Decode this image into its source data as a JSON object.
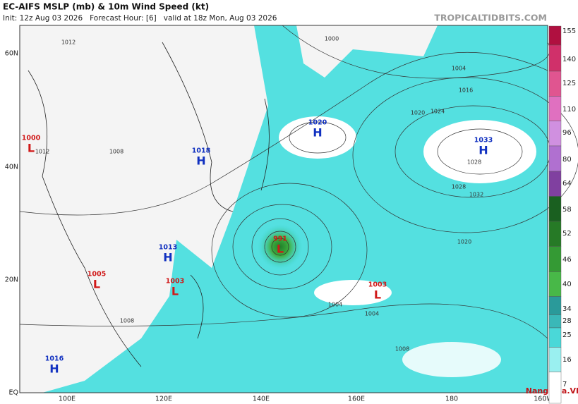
{
  "header": {
    "title": "EC-AIFS MSLP (mb) & 10m Wind Speed (kt)",
    "subtitle": "Init: 12z Aug 03 2026   Forecast Hour: [6]   valid at 18z Mon, Aug 03 2026",
    "site": "TROPICALTIDBITS.COM"
  },
  "latitude_labels": [
    "60N",
    "40N",
    "20N",
    "EQ"
  ],
  "longitude_labels": [
    "100E",
    "120E",
    "140E",
    "160E",
    "180",
    "160W"
  ],
  "colorbar": {
    "ticks": [
      "155",
      "140",
      "125",
      "110",
      "96",
      "80",
      "64",
      "58",
      "52",
      "46",
      "40",
      "34",
      "28",
      "25",
      "16",
      "7"
    ]
  },
  "pressure_centers": [
    {
      "symbol": "L",
      "value": "1000",
      "kind": "low"
    },
    {
      "symbol": "H",
      "value": "1018",
      "kind": "high"
    },
    {
      "symbol": "H",
      "value": "1013",
      "kind": "high"
    },
    {
      "symbol": "L",
      "value": "1005",
      "kind": "low"
    },
    {
      "symbol": "L",
      "value": "1003",
      "kind": "low"
    },
    {
      "symbol": "L",
      "value": "991",
      "kind": "low"
    },
    {
      "symbol": "L",
      "value": "1003",
      "kind": "low"
    },
    {
      "symbol": "H",
      "value": "1020",
      "kind": "high"
    },
    {
      "symbol": "H",
      "value": "1033",
      "kind": "high"
    },
    {
      "symbol": "H",
      "value": "1016",
      "kind": "high"
    }
  ],
  "isobar_labels": [
    "1012",
    "1000",
    "1004",
    "1016",
    "1020",
    "1024",
    "1028",
    "1032",
    "1012",
    "1008",
    "1004",
    "1008",
    "1004",
    "1008",
    "1020",
    "1028"
  ],
  "watermark": "NangMua.VN"
}
